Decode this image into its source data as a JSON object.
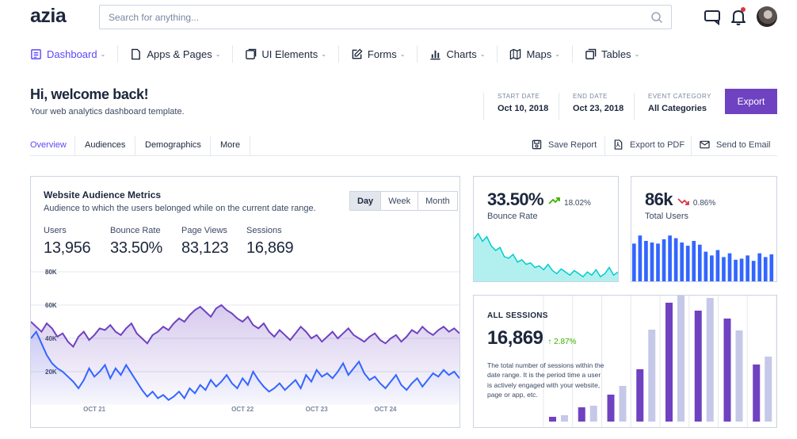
{
  "header": {
    "logo": "azia",
    "search_placeholder": "Search for anything..."
  },
  "nav": [
    {
      "label": "Dashboard",
      "icon": "dashboard-icon",
      "active": true
    },
    {
      "label": "Apps & Pages",
      "icon": "document-icon"
    },
    {
      "label": "UI Elements",
      "icon": "layers-icon"
    },
    {
      "label": "Forms",
      "icon": "edit-icon"
    },
    {
      "label": "Charts",
      "icon": "bar-chart-icon"
    },
    {
      "label": "Maps",
      "icon": "map-icon"
    },
    {
      "label": "Tables",
      "icon": "table-icon"
    }
  ],
  "welcome": {
    "title": "Hi, welcome back!",
    "subtitle": "Your web analytics dashboard template."
  },
  "dates": {
    "start_label": "START DATE",
    "start_value": "Oct 10, 2018",
    "end_label": "END DATE",
    "end_value": "Oct 23, 2018",
    "category_label": "EVENT CATEGORY",
    "category_value": "All Categories",
    "export": "Export"
  },
  "tabs": [
    "Overview",
    "Audiences",
    "Demographics",
    "More"
  ],
  "actions": {
    "save": "Save Report",
    "pdf": "Export to PDF",
    "email": "Send to Email"
  },
  "metrics": {
    "title": "Website Audience Metrics",
    "subtitle": "Audience to which the users belonged while on the current date range.",
    "ranges": [
      "Day",
      "Week",
      "Month"
    ],
    "stats": [
      {
        "label": "Users",
        "value": "13,956"
      },
      {
        "label": "Bounce Rate",
        "value": "33.50%"
      },
      {
        "label": "Page Views",
        "value": "83,123"
      },
      {
        "label": "Sessions",
        "value": "16,869"
      }
    ]
  },
  "bounce": {
    "value": "33.50%",
    "change": "18.02%",
    "label": "Bounce Rate",
    "trend": "up",
    "color": "#3bb001"
  },
  "users": {
    "value": "86k",
    "change": "0.86%",
    "label": "Total Users",
    "trend": "down",
    "color": "#dc3545"
  },
  "sessions": {
    "title": "ALL SESSIONS",
    "value": "16,869",
    "change": "↑ 2.87%",
    "description": "The total number of sessions within the date range. It is the period time a user is actively engaged with your website, page or app, etc."
  },
  "chart_data": [
    {
      "type": "area",
      "ylim": [
        0,
        80000
      ],
      "yticks": [
        "20K",
        "40K",
        "60K",
        "80K"
      ],
      "x_tick_labels": [
        "OCT 21",
        "OCT 22",
        "OCT 23",
        "OCT 24"
      ],
      "x_tick_index": [
        12,
        40,
        54,
        67
      ],
      "series": [
        {
          "color": "#6f42c1",
          "values": [
            50000,
            47000,
            44000,
            49000,
            46000,
            41000,
            43000,
            38000,
            35000,
            41000,
            44000,
            39000,
            42000,
            46000,
            45000,
            48000,
            44000,
            42000,
            46000,
            49000,
            43000,
            40000,
            37000,
            42000,
            44000,
            47000,
            45000,
            49000,
            52000,
            50000,
            54000,
            57000,
            59000,
            56000,
            53000,
            58000,
            60000,
            57000,
            55000,
            52000,
            50000,
            53000,
            48000,
            46000,
            49000,
            44000,
            41000,
            45000,
            42000,
            39000,
            43000,
            47000,
            44000,
            40000,
            42000,
            38000,
            41000,
            44000,
            40000,
            43000,
            46000,
            42000,
            40000,
            38000,
            41000,
            43000,
            39000,
            37000,
            40000,
            42000,
            38000,
            41000,
            45000,
            43000,
            47000,
            44000,
            42000,
            45000,
            47000,
            44000,
            46000,
            43000
          ]
        },
        {
          "color": "#3366ff",
          "values": [
            40000,
            44000,
            37000,
            30000,
            25000,
            22000,
            20000,
            17000,
            14000,
            10000,
            15000,
            22000,
            17000,
            20000,
            24000,
            16000,
            22000,
            18000,
            24000,
            19000,
            14000,
            9000,
            5000,
            8000,
            4000,
            6000,
            3000,
            5000,
            8000,
            4000,
            10000,
            7000,
            12000,
            9000,
            15000,
            11000,
            14000,
            18000,
            13000,
            10000,
            16000,
            12000,
            20000,
            15000,
            11000,
            8000,
            10000,
            13000,
            9000,
            12000,
            15000,
            10000,
            18000,
            14000,
            21000,
            17000,
            19000,
            16000,
            20000,
            25000,
            18000,
            22000,
            26000,
            19000,
            15000,
            17000,
            13000,
            10000,
            14000,
            18000,
            12000,
            9000,
            13000,
            16000,
            11000,
            15000,
            19000,
            17000,
            21000,
            18000,
            20000,
            16000
          ]
        }
      ]
    },
    {
      "type": "area",
      "color": "#00cccc",
      "values": [
        55,
        62,
        52,
        58,
        46,
        40,
        44,
        32,
        30,
        35,
        25,
        28,
        22,
        24,
        18,
        20,
        15,
        22,
        14,
        10,
        16,
        12,
        8,
        14,
        10,
        6,
        12,
        8,
        15,
        6,
        10,
        18,
        8,
        12
      ]
    },
    {
      "type": "bar",
      "color": "#3366ff",
      "values": [
        70,
        85,
        75,
        72,
        70,
        78,
        85,
        80,
        72,
        66,
        75,
        68,
        55,
        48,
        58,
        45,
        52,
        40,
        42,
        48,
        38,
        52,
        45,
        50
      ]
    },
    {
      "type": "bar",
      "series": [
        {
          "color": "#6f42c1",
          "values": [
            6,
            18,
            34,
            66,
            150,
            140,
            130,
            72
          ]
        },
        {
          "color": "#c6c8e8",
          "values": [
            8,
            20,
            45,
            116,
            170,
            156,
            115,
            82
          ]
        }
      ]
    }
  ]
}
